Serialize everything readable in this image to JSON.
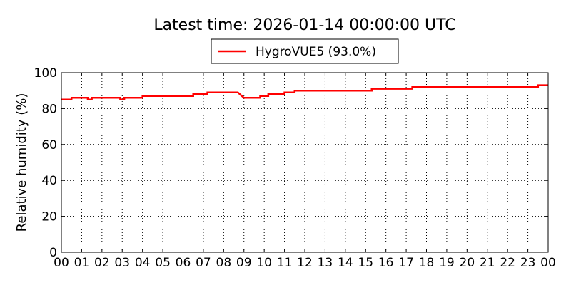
{
  "chart_data": {
    "type": "line",
    "title": "Latest time: 2026-01-14 00:00:00 UTC",
    "ylabel": "Relative humidity (%)",
    "legend": "upper center",
    "grid": true,
    "x": [
      0,
      0.5,
      0.5,
      1.3,
      1.3,
      1.5,
      1.5,
      2.9,
      2.9,
      3.1,
      3.1,
      4,
      4,
      6.5,
      6.5,
      7.2,
      7.2,
      8.7,
      8.9,
      9,
      9.8,
      9.8,
      10.2,
      10.2,
      11,
      11,
      11.5,
      11.5,
      15.3,
      15.3,
      17.3,
      17.3,
      23.5,
      23.5,
      24
    ],
    "series": [
      {
        "name": "HygroVUE5 (93.0%)",
        "color": "#ff0000",
        "values": [
          85,
          85,
          86,
          86,
          85,
          85,
          86,
          86,
          85,
          85,
          86,
          86,
          87,
          87,
          88,
          88,
          89,
          89,
          87,
          86,
          86,
          87,
          87,
          88,
          88,
          89,
          89,
          90,
          90,
          91,
          91,
          92,
          92,
          93,
          93
        ]
      }
    ],
    "xlim": [
      0,
      24
    ],
    "xticks": [
      {
        "value": 0,
        "label": "00"
      },
      {
        "value": 1,
        "label": "01"
      },
      {
        "value": 2,
        "label": "02"
      },
      {
        "value": 3,
        "label": "03"
      },
      {
        "value": 4,
        "label": "04"
      },
      {
        "value": 5,
        "label": "05"
      },
      {
        "value": 6,
        "label": "06"
      },
      {
        "value": 7,
        "label": "07"
      },
      {
        "value": 8,
        "label": "08"
      },
      {
        "value": 9,
        "label": "09"
      },
      {
        "value": 10,
        "label": "10"
      },
      {
        "value": 11,
        "label": "11"
      },
      {
        "value": 12,
        "label": "12"
      },
      {
        "value": 13,
        "label": "13"
      },
      {
        "value": 14,
        "label": "14"
      },
      {
        "value": 15,
        "label": "15"
      },
      {
        "value": 16,
        "label": "16"
      },
      {
        "value": 17,
        "label": "17"
      },
      {
        "value": 18,
        "label": "18"
      },
      {
        "value": 19,
        "label": "19"
      },
      {
        "value": 20,
        "label": "20"
      },
      {
        "value": 21,
        "label": "21"
      },
      {
        "value": 22,
        "label": "22"
      },
      {
        "value": 23,
        "label": "23"
      },
      {
        "value": 24,
        "label": "00"
      }
    ],
    "ylim": [
      0,
      100
    ],
    "yticks": [
      0,
      20,
      40,
      60,
      80,
      100
    ]
  }
}
